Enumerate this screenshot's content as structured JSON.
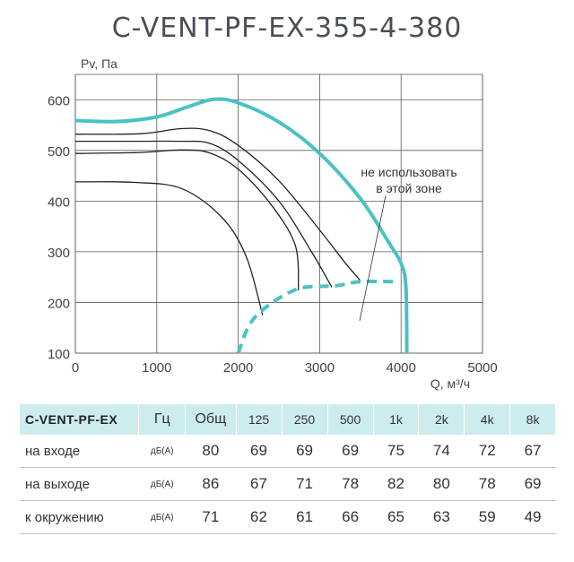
{
  "title": "C-VENT-PF-EX-355-4-380",
  "chart_data": {
    "type": "line",
    "ylabel": "Pv, Па",
    "xlabel": "Q, м³/ч",
    "xlim": [
      0,
      5000
    ],
    "ylim": [
      100,
      650
    ],
    "xticks": [
      0,
      1000,
      2000,
      3000,
      4000,
      5000
    ],
    "yticks": [
      100,
      200,
      300,
      400,
      500,
      600
    ],
    "grid": true,
    "annotation": [
      "не использовать",
      "в этой зоне"
    ],
    "series": [
      {
        "role": "max",
        "color": "#4cc1c4",
        "points": [
          [
            0,
            559
          ],
          [
            500,
            557
          ],
          [
            1000,
            566
          ],
          [
            1400,
            587
          ],
          [
            1700,
            601
          ],
          [
            2000,
            594
          ],
          [
            2500,
            556
          ],
          [
            3000,
            494
          ],
          [
            3500,
            405
          ],
          [
            3850,
            318
          ],
          [
            4000,
            277
          ],
          [
            4060,
            230
          ],
          [
            4070,
            100
          ]
        ]
      },
      {
        "role": "limit",
        "color": "#4cc1c4",
        "dashed": true,
        "points": [
          [
            2000,
            100
          ],
          [
            2200,
            170
          ],
          [
            2700,
            225
          ],
          [
            3200,
            233
          ],
          [
            3500,
            241
          ],
          [
            3950,
            241
          ]
        ]
      },
      {
        "color": "#222222",
        "points": [
          [
            0,
            532
          ],
          [
            800,
            533
          ],
          [
            1300,
            543
          ],
          [
            1650,
            539
          ],
          [
            2000,
            510
          ],
          [
            2500,
            440
          ],
          [
            3000,
            343
          ],
          [
            3300,
            281
          ],
          [
            3500,
            243
          ]
        ]
      },
      {
        "color": "#222222",
        "points": [
          [
            0,
            518
          ],
          [
            800,
            518
          ],
          [
            1300,
            518
          ],
          [
            1650,
            514
          ],
          [
            2000,
            480
          ],
          [
            2500,
            400
          ],
          [
            2900,
            300
          ],
          [
            3150,
            230
          ]
        ]
      },
      {
        "color": "#222222",
        "points": [
          [
            0,
            494
          ],
          [
            800,
            496
          ],
          [
            1300,
            501
          ],
          [
            1650,
            495
          ],
          [
            2000,
            463
          ],
          [
            2400,
            394
          ],
          [
            2700,
            313
          ],
          [
            2740,
            224
          ]
        ]
      },
      {
        "color": "#222222",
        "points": [
          [
            0,
            438
          ],
          [
            700,
            437
          ],
          [
            1300,
            425
          ],
          [
            1800,
            368
          ],
          [
            2100,
            290
          ],
          [
            2300,
            175
          ]
        ]
      }
    ]
  },
  "table": {
    "model": "C-VENT-PF-EX",
    "unit_header": "Гц",
    "columns": [
      "Общ",
      "125",
      "250",
      "500",
      "1k",
      "2k",
      "4k",
      "8k"
    ],
    "rows": [
      {
        "label": "на входе",
        "unit": "дБ(А)",
        "values": [
          "80",
          "69",
          "69",
          "69",
          "75",
          "74",
          "72",
          "67"
        ]
      },
      {
        "label": "на выходе",
        "unit": "дБ(А)",
        "values": [
          "86",
          "67",
          "71",
          "78",
          "82",
          "80",
          "78",
          "69"
        ]
      },
      {
        "label": "к окружению",
        "unit": "дБ(А)",
        "values": [
          "71",
          "62",
          "61",
          "66",
          "65",
          "63",
          "59",
          "49"
        ]
      }
    ]
  }
}
